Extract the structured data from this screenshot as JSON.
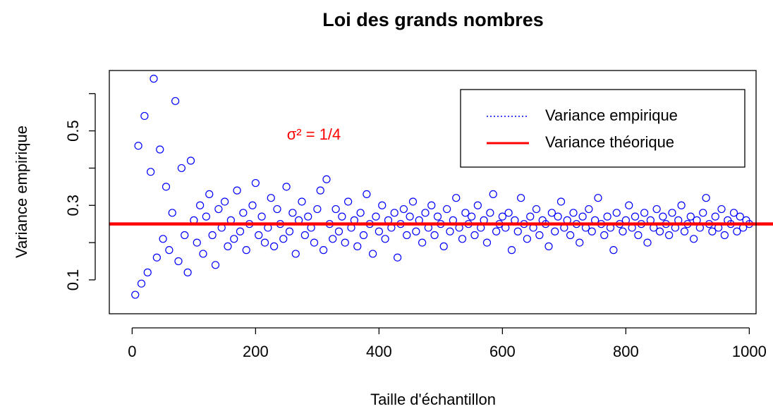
{
  "chart_data": {
    "type": "scatter",
    "title": "Loi des grands nombres",
    "x_label": "Taille d'échantillon",
    "y_label": "Variance empirique",
    "annotation": "σ² = 1/4",
    "annotation_color": "#ff0000",
    "xlim": [
      -37,
      1011
    ],
    "xticks": [
      0,
      200,
      400,
      600,
      800,
      1000
    ],
    "ylim": [
      0.009,
      0.662
    ],
    "yticks": [
      0.1,
      {
        "value": 0.2,
        "label": null
      },
      0.3,
      {
        "value": 0.4,
        "label": null
      },
      0.5,
      {
        "value": 0.6,
        "label": null
      }
    ],
    "legend": "topright",
    "series": [
      {
        "name": "Variance empirique",
        "color": "#0000ff",
        "marker": "circle-open",
        "legend_line": "dotted",
        "x": [
          5,
          10,
          15,
          20,
          25,
          30,
          35,
          40,
          45,
          50,
          55,
          60,
          65,
          70,
          75,
          80,
          85,
          90,
          95,
          100,
          105,
          110,
          115,
          120,
          125,
          130,
          135,
          140,
          145,
          150,
          155,
          160,
          165,
          170,
          175,
          180,
          185,
          190,
          195,
          200,
          205,
          210,
          215,
          220,
          225,
          230,
          235,
          240,
          245,
          250,
          255,
          260,
          265,
          270,
          275,
          280,
          285,
          290,
          295,
          300,
          305,
          310,
          315,
          320,
          325,
          330,
          335,
          340,
          345,
          350,
          355,
          360,
          365,
          370,
          375,
          380,
          385,
          390,
          395,
          400,
          405,
          410,
          415,
          420,
          425,
          430,
          435,
          440,
          445,
          450,
          455,
          460,
          465,
          470,
          475,
          480,
          485,
          490,
          495,
          500,
          505,
          510,
          515,
          520,
          525,
          530,
          535,
          540,
          545,
          550,
          555,
          560,
          565,
          570,
          575,
          580,
          585,
          590,
          595,
          600,
          605,
          610,
          615,
          620,
          625,
          630,
          635,
          640,
          645,
          650,
          655,
          660,
          665,
          670,
          675,
          680,
          685,
          690,
          695,
          700,
          705,
          710,
          715,
          720,
          725,
          730,
          735,
          740,
          745,
          750,
          755,
          760,
          765,
          770,
          775,
          780,
          785,
          790,
          795,
          800,
          805,
          810,
          815,
          820,
          825,
          830,
          835,
          840,
          845,
          850,
          855,
          860,
          865,
          870,
          875,
          880,
          885,
          890,
          895,
          900,
          905,
          910,
          915,
          920,
          925,
          930,
          935,
          940,
          945,
          950,
          955,
          960,
          965,
          970,
          975,
          980,
          985,
          990,
          995,
          1000
        ],
        "values": [
          0.06,
          0.46,
          0.09,
          0.54,
          0.12,
          0.39,
          0.64,
          0.16,
          0.45,
          0.21,
          0.35,
          0.18,
          0.28,
          0.58,
          0.15,
          0.4,
          0.22,
          0.12,
          0.42,
          0.26,
          0.2,
          0.3,
          0.17,
          0.27,
          0.33,
          0.22,
          0.14,
          0.29,
          0.24,
          0.31,
          0.19,
          0.26,
          0.21,
          0.34,
          0.23,
          0.28,
          0.18,
          0.25,
          0.3,
          0.36,
          0.22,
          0.27,
          0.2,
          0.24,
          0.32,
          0.19,
          0.29,
          0.25,
          0.21,
          0.35,
          0.23,
          0.28,
          0.17,
          0.26,
          0.31,
          0.22,
          0.27,
          0.24,
          0.2,
          0.29,
          0.34,
          0.18,
          0.37,
          0.25,
          0.21,
          0.29,
          0.23,
          0.27,
          0.2,
          0.31,
          0.24,
          0.26,
          0.19,
          0.28,
          0.22,
          0.33,
          0.25,
          0.17,
          0.27,
          0.23,
          0.3,
          0.21,
          0.26,
          0.24,
          0.28,
          0.16,
          0.25,
          0.29,
          0.22,
          0.27,
          0.31,
          0.23,
          0.26,
          0.2,
          0.28,
          0.24,
          0.3,
          0.22,
          0.27,
          0.25,
          0.19,
          0.29,
          0.23,
          0.26,
          0.32,
          0.24,
          0.21,
          0.28,
          0.25,
          0.27,
          0.22,
          0.3,
          0.24,
          0.26,
          0.2,
          0.28,
          0.33,
          0.23,
          0.25,
          0.27,
          0.24,
          0.28,
          0.18,
          0.26,
          0.23,
          0.32,
          0.25,
          0.21,
          0.27,
          0.24,
          0.29,
          0.22,
          0.26,
          0.25,
          0.19,
          0.28,
          0.23,
          0.27,
          0.31,
          0.24,
          0.26,
          0.22,
          0.28,
          0.25,
          0.2,
          0.27,
          0.24,
          0.29,
          0.23,
          0.26,
          0.32,
          0.25,
          0.22,
          0.27,
          0.24,
          0.18,
          0.28,
          0.25,
          0.23,
          0.26,
          0.3,
          0.24,
          0.27,
          0.22,
          0.25,
          0.28,
          0.2,
          0.26,
          0.24,
          0.29,
          0.23,
          0.27,
          0.25,
          0.22,
          0.28,
          0.24,
          0.26,
          0.3,
          0.23,
          0.25,
          0.27,
          0.21,
          0.26,
          0.24,
          0.28,
          0.32,
          0.25,
          0.23,
          0.27,
          0.24,
          0.29,
          0.22,
          0.26,
          0.25,
          0.28,
          0.23,
          0.27,
          0.24,
          0.26,
          0.25
        ]
      },
      {
        "name": "Variance théorique",
        "color": "#ff0000",
        "type": "hline",
        "value": 0.25
      }
    ]
  }
}
